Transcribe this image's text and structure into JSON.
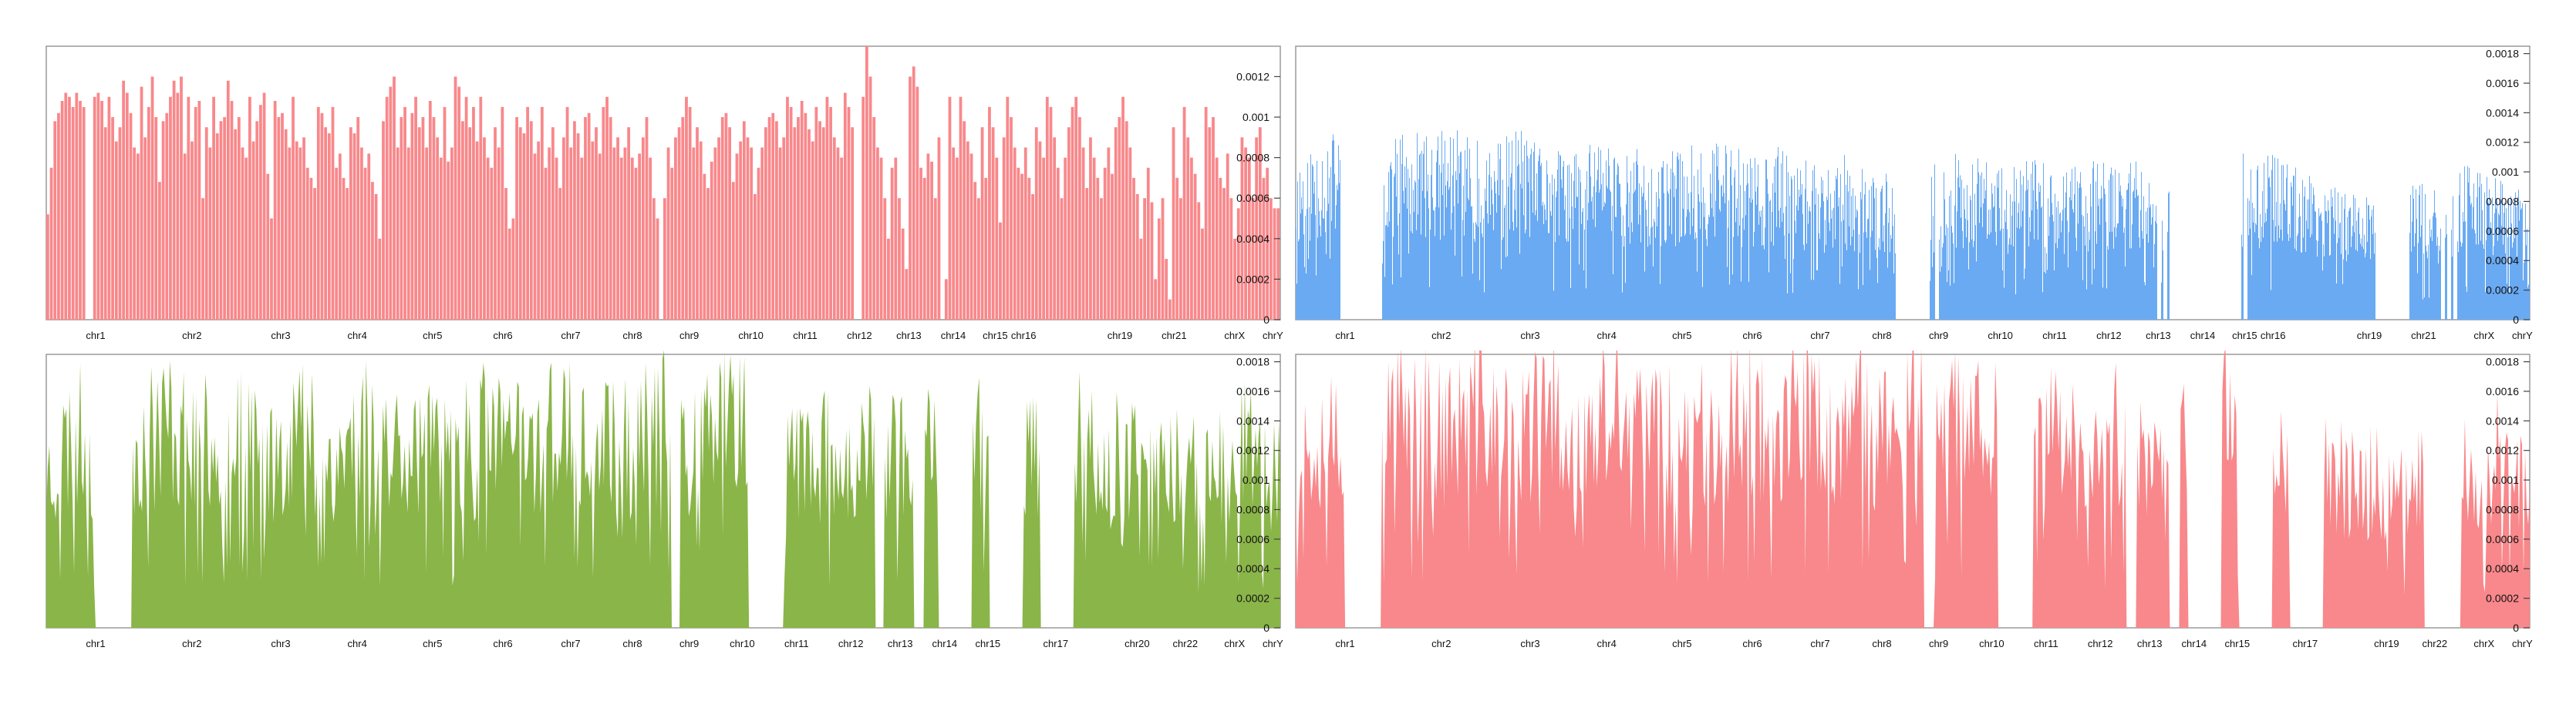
{
  "chart_data": [
    {
      "id": "panel-top-left",
      "type": "bar",
      "color": "#f8888b",
      "ylim": [
        0,
        0.00135
      ],
      "yticks": [
        "0",
        "0.0002",
        "0.0004",
        "0.0006",
        "0.0008",
        "0.001",
        "0.0012"
      ],
      "chromosomes": [
        "chr1",
        "chr2",
        "chr3",
        "chr4",
        "chr5",
        "chr6",
        "chr7",
        "chr8",
        "chr9",
        "chr10",
        "chr11",
        "chr12",
        "chr13",
        "chr14",
        "chr15",
        "chr16",
        "chr19",
        "chr21",
        "chrX",
        "chrY"
      ],
      "values": [
        0.00052,
        0.00075,
        0.00098,
        0.00102,
        0.00108,
        0.00112,
        0.0011,
        0.00105,
        0.00112,
        0.00108,
        0.00105,
        0.0,
        0.0,
        0.0011,
        0.00112,
        0.00108,
        0.00095,
        0.0011,
        0.001,
        0.00088,
        0.00095,
        0.00118,
        0.00112,
        0.00102,
        0.00085,
        0.00082,
        0.00115,
        0.0009,
        0.00105,
        0.0012,
        0.001,
        0.00068,
        0.00098,
        0.00102,
        0.0011,
        0.00118,
        0.00112,
        0.0012,
        0.00082,
        0.0011,
        0.00088,
        0.00105,
        0.00108,
        0.0006,
        0.00095,
        0.00085,
        0.0011,
        0.00092,
        0.00098,
        0.001,
        0.00118,
        0.00108,
        0.00094,
        0.001,
        0.00085,
        0.0008,
        0.0011,
        0.00088,
        0.00098,
        0.00106,
        0.00112,
        0.00072,
        0.0005,
        0.00108,
        0.001,
        0.00102,
        0.00094,
        0.00085,
        0.0011,
        0.00088,
        0.00085,
        0.0009,
        0.00075,
        0.0007,
        0.00065,
        0.00105,
        0.00102,
        0.00095,
        0.00092,
        0.00105,
        0.00075,
        0.00082,
        0.0007,
        0.00065,
        0.00095,
        0.00092,
        0.001,
        0.00085,
        0.00075,
        0.00082,
        0.00068,
        0.00062,
        0.0004,
        0.00098,
        0.0011,
        0.00115,
        0.0012,
        0.00085,
        0.001,
        0.00105,
        0.00085,
        0.00102,
        0.0011,
        0.00095,
        0.001,
        0.00085,
        0.00108,
        0.001,
        0.0009,
        0.0008,
        0.00105,
        0.00078,
        0.00085,
        0.0012,
        0.00115,
        0.00098,
        0.0011,
        0.00095,
        0.00105,
        0.00088,
        0.0011,
        0.0009,
        0.0008,
        0.00075,
        0.00095,
        0.00085,
        0.00105,
        0.00065,
        0.00045,
        0.0005,
        0.001,
        0.00095,
        0.00092,
        0.00105,
        0.00098,
        0.00082,
        0.00088,
        0.00105,
        0.00075,
        0.00085,
        0.00095,
        0.0008,
        0.00065,
        0.0009,
        0.00105,
        0.00085,
        0.00098,
        0.00092,
        0.0008,
        0.001,
        0.00102,
        0.00088,
        0.00095,
        0.00082,
        0.00105,
        0.0011,
        0.001,
        0.00085,
        0.0009,
        0.0008,
        0.00085,
        0.00095,
        0.0008,
        0.00075,
        0.00082,
        0.0009,
        0.001,
        0.0008,
        0.0006,
        0.0005,
        0.0,
        0.0006,
        0.00085,
        0.00075,
        0.0009,
        0.00095,
        0.001,
        0.0011,
        0.00105,
        0.00085,
        0.00095,
        0.00088,
        0.00072,
        0.00065,
        0.00078,
        0.00085,
        0.0009,
        0.001,
        0.00102,
        0.00095,
        0.00068,
        0.00082,
        0.00088,
        0.00098,
        0.0009,
        0.00085,
        0.00062,
        0.00075,
        0.00085,
        0.00095,
        0.001,
        0.00102,
        0.00098,
        0.00085,
        0.0009,
        0.0011,
        0.00105,
        0.00095,
        0.001,
        0.00108,
        0.00102,
        0.00094,
        0.00088,
        0.00105,
        0.00098,
        0.00095,
        0.0011,
        0.00105,
        0.0009,
        0.00085,
        0.0008,
        0.00112,
        0.00105,
        0.00095,
        0.0,
        0.0,
        0.0011,
        0.00135,
        0.0012,
        0.001,
        0.00085,
        0.0008,
        0.0006,
        0.0004,
        0.00075,
        0.0008,
        0.0006,
        0.00045,
        0.00025,
        0.0012,
        0.00125,
        0.00115,
        0.00075,
        0.0007,
        0.00082,
        0.00078,
        0.0006,
        0.0009,
        0.0,
        0.0002,
        0.0011,
        0.00085,
        0.0008,
        0.0011,
        0.00098,
        0.00088,
        0.00082,
        0.00068,
        0.0006,
        0.00095,
        0.0007,
        0.00105,
        0.00095,
        0.0008,
        0.00048,
        0.0009,
        0.0011,
        0.001,
        0.00085,
        0.00075,
        0.00072,
        0.00085,
        0.0007,
        0.00062,
        0.00095,
        0.00088,
        0.0008,
        0.0011,
        0.00105,
        0.0009,
        0.00075,
        0.0006,
        0.0008,
        0.00095,
        0.00105,
        0.0011,
        0.001,
        0.00085,
        0.00065,
        0.0009,
        0.0008,
        0.0007,
        0.0006,
        0.00075,
        0.00085,
        0.00072,
        0.00095,
        0.001,
        0.0011,
        0.00098,
        0.00085,
        0.0007,
        0.00062,
        0.0004,
        0.0006,
        0.00075,
        0.00058,
        0.0002,
        0.0005,
        0.0006,
        0.0003,
        0.0001,
        0.00095,
        0.0007,
        0.0006,
        0.00105,
        0.0009,
        0.0008,
        0.00072,
        0.00058,
        0.00045,
        0.00105,
        0.00095,
        0.001,
        0.0008,
        0.0007,
        0.00065,
        0.00082,
        0.0006,
        0.0004,
        0.00055,
        0.0009,
        0.00085,
        0.0008,
        0.0006,
        0.0009,
        0.00095,
        0.0007,
        0.00075,
        0.0006,
        0.00055,
        0.00055
      ]
    },
    {
      "id": "panel-top-right",
      "type": "bar",
      "color": "#6aaaf2",
      "ylim": [
        0,
        0.00185
      ],
      "yticks": [
        "0",
        "0.0002",
        "0.0004",
        "0.0006",
        "0.0008",
        "0.001",
        "0.0012",
        "0.0014",
        "0.0016",
        "0.0018"
      ],
      "chromosomes": [
        "chr1",
        "chr2",
        "chr3",
        "chr4",
        "chr5",
        "chr6",
        "chr7",
        "chr8",
        "chr9",
        "chr10",
        "chr11",
        "chr12",
        "chr13",
        "chr14",
        "chr15",
        "chr16",
        "chr19",
        "chr21",
        "chrX",
        "chrY"
      ],
      "seed": 11,
      "profile": [
        0.00085,
        0.00095,
        0.001,
        0.00092,
        0.0,
        0.00095,
        0.001,
        0.00098,
        0.00095,
        0.00102,
        0.00098,
        0.0009,
        0.00095,
        0.001,
        0.00092,
        0.0009,
        0.00088,
        0.00095,
        0.00098,
        0.00085,
        0.0009,
        0.00082,
        0.00088,
        0.00092,
        0.0009,
        0.00095,
        0.00088,
        0.00085,
        0.0009,
        0.00092,
        0.0008,
        0.00082,
        0.00086,
        0.0008,
        0.00075,
        0.0008,
        0.0,
        0.0008,
        0.00085,
        0.00088,
        0.00086,
        0.0008,
        0.00082,
        0.00085,
        0.0008,
        0.00078,
        0.00082,
        0.00085,
        0.0008,
        0.00088,
        0.00082,
        0.0008,
        0.0,
        0.00082,
        0.0,
        0.0009,
        0.00085,
        0.00088,
        0.0008,
        0.00078,
        0.00075,
        0.0007,
        0.00068,
        0.00072,
        0.0,
        0.0007,
        0.00072,
        0.00065,
        0.0008,
        0.00082,
        0.00078,
        0.0007,
        0.00065
      ],
      "zero_cols": [
        0.0375,
        0.0385,
        0.0395,
        0.0405,
        0.51,
        0.52,
        0.7,
        0.705,
        0.735,
        0.74,
        0.765,
        0.77,
        0.93,
        0.935,
        0.94
      ]
    },
    {
      "id": "panel-bottom-left",
      "type": "area",
      "color": "#8ab549",
      "ylim": [
        0,
        0.00185
      ],
      "yticks": [
        "0",
        "0.0002",
        "0.0004",
        "0.0006",
        "0.0008",
        "0.001",
        "0.0012",
        "0.0014",
        "0.0016",
        "0.0018"
      ],
      "chromosomes": [
        "chr1",
        "chr2",
        "chr3",
        "chr4",
        "chr5",
        "chr6",
        "chr7",
        "chr8",
        "chr9",
        "chr10",
        "chr11",
        "chr12",
        "chr13",
        "chr14",
        "chr15",
        "chr17",
        "chr20",
        "chr22",
        "chrX",
        "chrY"
      ],
      "seed": 23,
      "profile": [
        0.0011,
        0.0013,
        0.0014,
        0.0012,
        0.0,
        0.0013,
        0.0014,
        0.0015,
        0.0014,
        0.0013,
        0.0014,
        0.0015,
        0.0013,
        0.0012,
        0.0014,
        0.0015,
        0.0013,
        0.0012,
        0.0014,
        0.0015,
        0.0013,
        0.0014,
        0.0013,
        0.0012,
        0.0014,
        0.0013,
        0.0015,
        0.0014,
        0.0013,
        0.0014,
        0.0015,
        0.0013,
        0.0012,
        0.0014,
        0.0013,
        0.0014,
        0.0015,
        0.0014,
        0.0013,
        0.0014,
        0.0015,
        0.0014,
        0.0,
        0.0011,
        0.0013,
        0.0012,
        0.0013,
        0.0012,
        0.0013,
        0.0012,
        0.0013,
        0.0014,
        0.0012,
        0.0,
        0.0014,
        0.0013,
        0.0,
        0.0013,
        0.0012,
        0.0,
        0.0014,
        0.0013,
        0.0012,
        0.0013,
        0.0011,
        0.0012,
        0.0013,
        0.0012,
        0.0011,
        0.0012,
        0.0013,
        0.0012,
        0.0011
      ],
      "zero_cols": [
        0.043,
        0.045,
        0.047,
        0.509,
        0.511,
        0.674,
        0.676,
        0.706,
        0.708,
        0.741,
        0.743
      ]
    },
    {
      "id": "panel-bottom-right",
      "type": "area",
      "color": "#f8888b",
      "ylim": [
        0,
        0.00185
      ],
      "yticks": [
        "0",
        "0.0002",
        "0.0004",
        "0.0006",
        "0.0008",
        "0.001",
        "0.0012",
        "0.0014",
        "0.0016",
        "0.0018"
      ],
      "chromosomes": [
        "chr1",
        "chr2",
        "chr3",
        "chr4",
        "chr5",
        "chr6",
        "chr7",
        "chr8",
        "chr9",
        "chr10",
        "chr11",
        "chr12",
        "chr13",
        "chr14",
        "chr15",
        "chr17",
        "chr19",
        "chr22",
        "chrX",
        "chrY"
      ],
      "seed": 37,
      "profile": [
        0.0013,
        0.0014,
        0.0015,
        0.0014,
        0.0,
        0.0014,
        0.0015,
        0.0016,
        0.0015,
        0.0014,
        0.0015,
        0.0016,
        0.0014,
        0.0013,
        0.0015,
        0.0016,
        0.0014,
        0.0013,
        0.0015,
        0.0016,
        0.0014,
        0.0015,
        0.0014,
        0.0013,
        0.0015,
        0.0014,
        0.0016,
        0.0015,
        0.0014,
        0.0015,
        0.0016,
        0.0014,
        0.0013,
        0.0015,
        0.0014,
        0.0015,
        0.0016,
        0.0015,
        0.0014,
        0.0015,
        0.0016,
        0.0015,
        0.0,
        0.0012,
        0.0014,
        0.0013,
        0.0014,
        0.0013,
        0.0014,
        0.0013,
        0.0014,
        0.0015,
        0.0013,
        0.0,
        0.0015,
        0.0014,
        0.0,
        0.0014,
        0.0013,
        0.0,
        0.0012,
        0.0011,
        0.001,
        0.0011,
        0.0009,
        0.001,
        0.0011,
        0.0,
        0.0012,
        0.0011,
        0.0013,
        0.0012,
        0.0011
      ],
      "zero_cols": [
        0.043,
        0.045,
        0.047,
        0.512,
        0.514,
        0.676,
        0.678,
        0.711,
        0.713,
        0.742,
        0.744,
        0.918,
        0.92
      ]
    }
  ]
}
